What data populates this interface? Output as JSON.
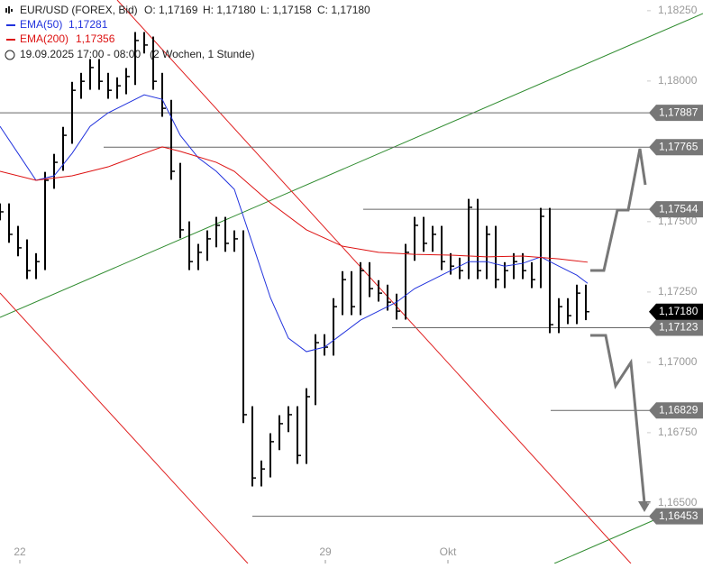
{
  "chart_data": {
    "type": "hlc",
    "header": {
      "symbol": "EUR/USD (FOREX, Bid)",
      "open": "O: 1,17169",
      "high": "H: 1,17180",
      "low": "L: 1,17158",
      "close": "C: 1,17180",
      "period": "19.09.2025 17:00 - 08:00",
      "range": "(2 Wochen, 1 Stunde)"
    },
    "x": [
      0,
      5,
      10,
      15,
      20,
      25,
      30,
      35,
      40,
      45,
      50,
      55,
      60,
      65,
      70,
      75,
      80,
      85,
      90,
      95,
      100,
      105,
      110,
      115,
      120,
      125,
      130,
      135,
      140,
      145,
      150,
      155,
      160,
      165,
      170,
      175,
      180,
      185,
      190,
      195,
      200,
      205,
      210,
      215,
      220,
      225,
      230,
      235,
      240,
      245,
      250,
      255,
      260,
      265,
      270,
      275,
      280,
      285,
      290,
      295,
      300,
      305,
      310,
      315,
      320,
      325
    ],
    "high": [
      1.17565,
      1.17565,
      1.17485,
      1.17437,
      1.17388,
      1.17677,
      1.17741,
      1.17837,
      1.17997,
      1.18029,
      1.18078,
      1.18078,
      1.18029,
      1.18013,
      1.18046,
      1.18174,
      1.18174,
      1.18158,
      1.18029,
      1.17933,
      1.17709,
      1.17501,
      1.17421,
      1.17469,
      1.17517,
      1.17517,
      1.17469,
      1.17469,
      1.16844,
      1.16651,
      1.16748,
      1.16812,
      1.16844,
      1.16844,
      1.16908,
      1.171,
      1.171,
      1.17228,
      1.17324,
      1.17324,
      1.17356,
      1.17356,
      1.17292,
      1.17276,
      1.17244,
      1.17421,
      1.17517,
      1.17517,
      1.17485,
      1.17485,
      1.17388,
      1.17372,
      1.17581,
      1.17581,
      1.17485,
      1.17485,
      1.17356,
      1.17388,
      1.17388,
      1.17356,
      1.17549,
      1.17549,
      1.17228,
      1.17228,
      1.17276,
      1.17276
    ],
    "low": [
      1.17505,
      1.17425,
      1.17377,
      1.17296,
      1.17296,
      1.17328,
      1.17617,
      1.17681,
      1.17777,
      1.17937,
      1.17969,
      1.17969,
      1.17937,
      1.17937,
      1.17953,
      1.17986,
      1.18098,
      1.17969,
      1.17873,
      1.17649,
      1.17441,
      1.17328,
      1.17328,
      1.17361,
      1.17409,
      1.17393,
      1.17393,
      1.16784,
      1.16559,
      1.16559,
      1.16591,
      1.16688,
      1.16752,
      1.16639,
      1.16639,
      1.16848,
      1.17024,
      1.17024,
      1.17168,
      1.17168,
      1.17168,
      1.17232,
      1.17216,
      1.17184,
      1.17152,
      1.17152,
      1.17361,
      1.17393,
      1.17393,
      1.17328,
      1.17312,
      1.17296,
      1.17296,
      1.17296,
      1.17296,
      1.17264,
      1.17264,
      1.17296,
      1.17296,
      1.17264,
      1.17264,
      1.17104,
      1.17104,
      1.17136,
      1.17136,
      1.1715
    ],
    "close": [
      1.17535,
      1.17455,
      1.17407,
      1.17326,
      1.17358,
      1.17647,
      1.17711,
      1.17807,
      1.17967,
      1.17999,
      1.18048,
      1.17999,
      1.17967,
      1.17983,
      1.18016,
      1.18144,
      1.18128,
      1.17999,
      1.17903,
      1.17679,
      1.17471,
      1.17358,
      1.17391,
      1.17439,
      1.17487,
      1.17423,
      1.17439,
      1.16814,
      1.16589,
      1.16621,
      1.16718,
      1.16782,
      1.16814,
      1.16669,
      1.16878,
      1.1707,
      1.17054,
      1.17198,
      1.17294,
      1.17198,
      1.17326,
      1.17262,
      1.17246,
      1.17214,
      1.17182,
      1.17391,
      1.17487,
      1.17423,
      1.17455,
      1.17358,
      1.17342,
      1.17326,
      1.17551,
      1.17326,
      1.17455,
      1.17294,
      1.17326,
      1.17358,
      1.17326,
      1.17294,
      1.17519,
      1.17134,
      1.17198,
      1.17166,
      1.17246,
      1.1718
    ],
    "color": "#000000",
    "series": [
      {
        "name": "EMA(50)",
        "value_label": "1,17281",
        "color": "#2233dd",
        "x": [
          0,
          10,
          20,
          30,
          40,
          50,
          60,
          70,
          80,
          90,
          100,
          110,
          120,
          130,
          140,
          150,
          160,
          170,
          180,
          190,
          200,
          210,
          220,
          230,
          240,
          250,
          260,
          270,
          280,
          290,
          300,
          310,
          320,
          326
        ],
        "values": [
          1.17839,
          1.17743,
          1.17647,
          1.17663,
          1.17743,
          1.17839,
          1.17887,
          1.17919,
          1.17951,
          1.17935,
          1.17807,
          1.17727,
          1.17679,
          1.17615,
          1.17423,
          1.1723,
          1.17086,
          1.17038,
          1.17054,
          1.17102,
          1.1715,
          1.17182,
          1.17214,
          1.17262,
          1.17294,
          1.17326,
          1.17358,
          1.17358,
          1.17342,
          1.17352,
          1.17375,
          1.17342,
          1.1731,
          1.17281
        ]
      },
      {
        "name": "EMA(200)",
        "value_label": "1,17356",
        "color": "#dd1111",
        "x": [
          0,
          20,
          40,
          60,
          80,
          90,
          100,
          120,
          130,
          150,
          170,
          190,
          210,
          230,
          250,
          270,
          290,
          310,
          326
        ],
        "values": [
          1.17679,
          1.17647,
          1.17663,
          1.17695,
          1.17743,
          1.17766,
          1.1775,
          1.17711,
          1.17679,
          1.17567,
          1.17471,
          1.17413,
          1.17391,
          1.17384,
          1.17381,
          1.17375,
          1.17378,
          1.17368,
          1.17356
        ]
      }
    ],
    "levels": [
      {
        "value": 1.17887,
        "label": "1,17887"
      },
      {
        "value": 1.17765,
        "label": "1,17765"
      },
      {
        "value": 1.17544,
        "label": "1,17544"
      },
      {
        "value": 1.17123,
        "label": "1,17123"
      },
      {
        "value": 1.16829,
        "label": "1,16829"
      },
      {
        "value": 1.16453,
        "label": "1,16453"
      }
    ],
    "last_price": {
      "value": 1.1718,
      "label": "1,17180"
    },
    "xlim": [
      0,
      359
    ],
    "xticks": [
      {
        "value": 11,
        "label": "22"
      },
      {
        "value": 180.5,
        "label": "29"
      },
      {
        "value": 248.5,
        "label": "Okt"
      }
    ],
    "ylim": [
      1.16285,
      1.18288
    ],
    "yticks": [
      {
        "value": 1.1825,
        "label": "1,18250"
      },
      {
        "value": 1.18,
        "label": "1,18000"
      },
      {
        "value": 1.175,
        "label": "1,17500"
      },
      {
        "value": 1.1725,
        "label": "1,17250"
      },
      {
        "value": 1.17,
        "label": "1,17000"
      },
      {
        "value": 1.1675,
        "label": "1,16750"
      },
      {
        "value": 1.165,
        "label": "1,16500"
      }
    ]
  }
}
